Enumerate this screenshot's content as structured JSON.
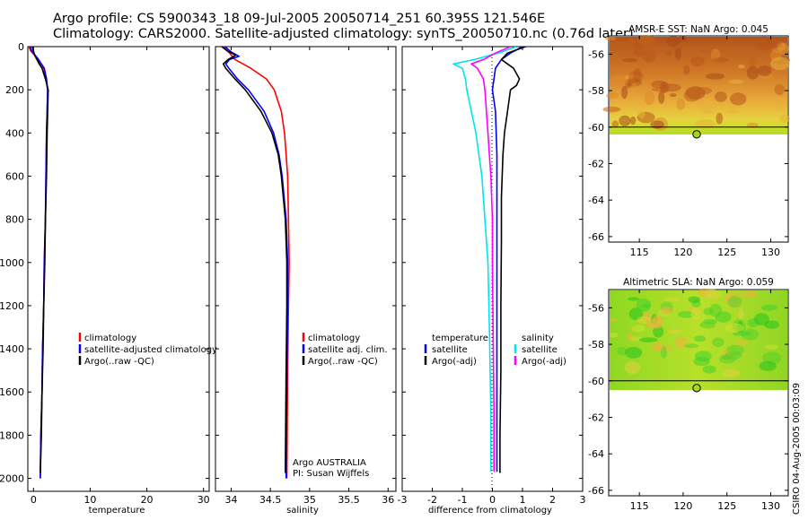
{
  "header": {
    "line1": "Argo profile: CS 5900343_18 09-Jul-2005 20050714_251 60.395S 121.546E",
    "line2": "Climatology: CARS2000. Satellite-adjusted climatology: synTS_20050710.nc (0.76d later)"
  },
  "colors": {
    "climatology": "#ff0000",
    "satellite": "#0000ff",
    "argo": "#000000",
    "sal_satellite": "#00e5ee",
    "sal_argo": "#ff00ff"
  },
  "chart_data": [
    {
      "type": "line",
      "id": "temperature",
      "xlabel": "temperature",
      "ylabel": "",
      "xlim": [
        -1,
        31
      ],
      "ylim": [
        2060,
        0
      ],
      "y_reversed": true,
      "xticks": [
        0,
        10,
        20,
        30
      ],
      "yticks": [
        0,
        200,
        400,
        600,
        800,
        1000,
        1200,
        1400,
        1600,
        1800,
        2000
      ],
      "legend": [
        "climatology",
        "satellite-adjusted climatology",
        "Argo(..raw -QC)"
      ],
      "series": [
        {
          "name": "climatology",
          "color": "#ff0000",
          "width": 1.6,
          "depth": [
            0,
            20,
            40,
            60,
            80,
            100,
            150,
            200,
            300,
            400,
            600,
            800,
            1000,
            1200,
            1400,
            1600,
            1800,
            2000
          ],
          "values": [
            -0.8,
            -0.5,
            0.2,
            0.8,
            1.3,
            1.8,
            2.2,
            2.5,
            2.4,
            2.3,
            2.2,
            2.1,
            1.9,
            1.8,
            1.6,
            1.5,
            1.3,
            1.2
          ]
        },
        {
          "name": "satellite-adjusted climatology",
          "color": "#0000ff",
          "width": 1.6,
          "depth": [
            0,
            20,
            40,
            60,
            80,
            100,
            150,
            200,
            300,
            400,
            600,
            800,
            1000,
            1200,
            1400,
            1600,
            1800,
            2000
          ],
          "values": [
            -0.6,
            -0.3,
            0.3,
            0.9,
            1.4,
            1.9,
            2.3,
            2.5,
            2.4,
            2.3,
            2.2,
            2.1,
            1.9,
            1.8,
            1.6,
            1.5,
            1.3,
            1.2
          ]
        },
        {
          "name": "Argo(..raw -QC)",
          "color": "#000000",
          "width": 1.6,
          "depth": [
            0,
            20,
            40,
            60,
            80,
            100,
            150,
            200,
            300,
            400,
            600,
            800,
            1000,
            1200,
            1400,
            1600,
            1800,
            1975
          ],
          "values": [
            -0.2,
            0.0,
            0.2,
            0.6,
            1.0,
            1.5,
            2.1,
            2.6,
            2.5,
            2.4,
            2.3,
            2.1,
            2.0,
            1.8,
            1.7,
            1.5,
            1.4,
            1.2
          ]
        }
      ]
    },
    {
      "type": "line",
      "id": "salinity",
      "xlabel": "salinity",
      "ylabel": "",
      "xlim": [
        33.8,
        36.1
      ],
      "ylim": [
        2060,
        0
      ],
      "y_reversed": true,
      "xticks": [
        34,
        34.5,
        35,
        35.5,
        36
      ],
      "legend": [
        "climatology",
        "satellite adj. clim.",
        "Argo(..raw -QC)"
      ],
      "annotations": [
        "Argo AUSTRALIA",
        "PI: Susan Wijffels"
      ],
      "series": [
        {
          "name": "climatology",
          "color": "#ff0000",
          "width": 1.6,
          "depth": [
            0,
            30,
            60,
            100,
            150,
            200,
            300,
            400,
            500,
            600,
            800,
            1000,
            1200,
            1500,
            2000
          ],
          "values": [
            33.9,
            33.98,
            34.05,
            34.25,
            34.45,
            34.55,
            34.64,
            34.68,
            34.7,
            34.72,
            34.73,
            34.74,
            34.73,
            34.72,
            34.71
          ]
        },
        {
          "name": "satellite adj. clim.",
          "color": "#0000ff",
          "width": 1.6,
          "depth": [
            0,
            25,
            45,
            60,
            80,
            100,
            150,
            200,
            300,
            400,
            500,
            600,
            800,
            1000,
            1200,
            1500,
            2000
          ],
          "values": [
            33.92,
            34.0,
            34.1,
            33.98,
            33.93,
            33.97,
            34.08,
            34.22,
            34.42,
            34.54,
            34.61,
            34.65,
            34.7,
            34.72,
            34.72,
            34.71,
            34.7
          ]
        },
        {
          "name": "Argo(..raw -QC)",
          "color": "#000000",
          "width": 1.6,
          "depth": [
            0,
            20,
            40,
            60,
            80,
            100,
            150,
            200,
            300,
            400,
            500,
            600,
            800,
            1000,
            1200,
            1500,
            1975
          ],
          "values": [
            33.88,
            33.95,
            34.06,
            33.96,
            33.9,
            33.93,
            34.05,
            34.18,
            34.38,
            34.52,
            34.6,
            34.64,
            34.69,
            34.71,
            34.71,
            34.7,
            34.69
          ]
        }
      ]
    },
    {
      "type": "line",
      "id": "difference",
      "xlabel": "difference from climatology",
      "ylabel": "",
      "xlim": [
        -3,
        3
      ],
      "ylim": [
        2060,
        0
      ],
      "y_reversed": true,
      "xticks": [
        -3,
        -2,
        -1,
        0,
        1,
        2,
        3
      ],
      "legend_left": {
        "title": "temperature",
        "items": [
          "satellite",
          "Argo(-adj)"
        ]
      },
      "legend_right": {
        "title": "salinity",
        "items": [
          "satellite",
          "Argo(-adj)"
        ]
      },
      "series": [
        {
          "name": "temperature satellite",
          "color": "#0000ff",
          "width": 1.6,
          "depth": [
            0,
            30,
            60,
            100,
            150,
            200,
            300,
            500,
            800,
            1200,
            1600,
            1970
          ],
          "values": [
            1.0,
            0.6,
            0.3,
            0.1,
            0.05,
            0.0,
            0.1,
            0.15,
            0.15,
            0.15,
            0.15,
            0.15
          ]
        },
        {
          "name": "temperature Argo(-adj)",
          "color": "#000000",
          "width": 1.6,
          "depth": [
            0,
            30,
            60,
            80,
            100,
            150,
            180,
            200,
            300,
            400,
            500,
            700,
            900,
            1200,
            1500,
            1800,
            1975
          ],
          "values": [
            1.1,
            0.5,
            0.3,
            0.5,
            0.7,
            0.9,
            0.8,
            0.6,
            0.5,
            0.4,
            0.35,
            0.3,
            0.3,
            0.28,
            0.28,
            0.25,
            0.25
          ]
        },
        {
          "name": "salinity satellite",
          "color": "#00e5ee",
          "width": 1.6,
          "depth": [
            0,
            30,
            60,
            80,
            100,
            150,
            200,
            300,
            400,
            500,
            600,
            800,
            1000,
            1300,
            1700,
            1970
          ],
          "values": [
            0.8,
            0.2,
            -0.6,
            -1.3,
            -1.0,
            -0.9,
            -0.85,
            -0.7,
            -0.55,
            -0.45,
            -0.35,
            -0.25,
            -0.15,
            -0.1,
            -0.05,
            -0.05
          ]
        },
        {
          "name": "salinity Argo(-adj)",
          "color": "#ff00ff",
          "width": 1.6,
          "depth": [
            0,
            30,
            60,
            80,
            100,
            150,
            200,
            300,
            400,
            500,
            600,
            800,
            1000,
            1300,
            1700,
            1970
          ],
          "values": [
            0.6,
            0.1,
            -0.3,
            -0.7,
            -0.5,
            -0.3,
            -0.25,
            -0.2,
            -0.15,
            -0.1,
            -0.05,
            0.0,
            0.0,
            0.02,
            0.05,
            0.05
          ]
        }
      ]
    },
    {
      "type": "heatmap",
      "id": "sst_map",
      "title": "AMSR-E SST: NaN Argo: 0.045",
      "xlim": [
        111.5,
        132
      ],
      "ylim": [
        -66.3,
        -55
      ],
      "xticks": [
        115,
        120,
        125,
        130
      ],
      "yticks": [
        -56,
        -58,
        -60,
        -62,
        -64,
        -66
      ],
      "data_extent": {
        "lat_min": -60,
        "lat_max": -55
      },
      "colormap": "brown-orange-yellow-green (warm north, cool south)",
      "marker": {
        "lon": 121.546,
        "lat": -60.395,
        "color": "#a8d814"
      }
    },
    {
      "type": "heatmap",
      "id": "sla_map",
      "title": "Altimetric SLA: NaN Argo: 0.059",
      "xlim": [
        111.5,
        132
      ],
      "ylim": [
        -66.3,
        -55
      ],
      "xticks": [
        115,
        120,
        125,
        130
      ],
      "yticks": [
        -56,
        -58,
        -60,
        -62,
        -64,
        -66
      ],
      "data_extent": {
        "lat_min": -60,
        "lat_max": -55
      },
      "colormap": "green-yellow-orange mottled",
      "marker": {
        "lon": 121.546,
        "lat": -60.395,
        "color": "#a8d814"
      }
    }
  ],
  "footer": {
    "credit": "CSIRO 04-Aug-2005 00:03:09"
  }
}
